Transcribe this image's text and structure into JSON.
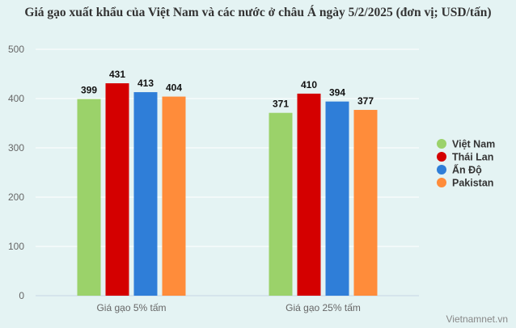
{
  "chart_data": {
    "type": "bar",
    "title": "Giá gạo xuất khẩu của Việt Nam và các nước ở châu Á ngày 5/2/2025 (đơn vị; USD/tấn)",
    "categories": [
      "Giá gạo 5% tấm",
      "Giá gạo 25% tấm"
    ],
    "series": [
      {
        "name": "Việt Nam",
        "values": [
          399,
          371
        ],
        "color": "#9bd26a"
      },
      {
        "name": "Thái Lan",
        "values": [
          431,
          410
        ],
        "color": "#d40000"
      },
      {
        "name": "Ấn Độ",
        "values": [
          413,
          394
        ],
        "color": "#2f7ed8"
      },
      {
        "name": "Pakistan",
        "values": [
          404,
          377
        ],
        "color": "#ff8c3a"
      }
    ],
    "yticks": [
      0,
      100,
      200,
      300,
      400,
      500
    ],
    "ylim": [
      0,
      500
    ],
    "grid": true,
    "legend_position": "right"
  },
  "watermark": "Vietnamnet.vn"
}
